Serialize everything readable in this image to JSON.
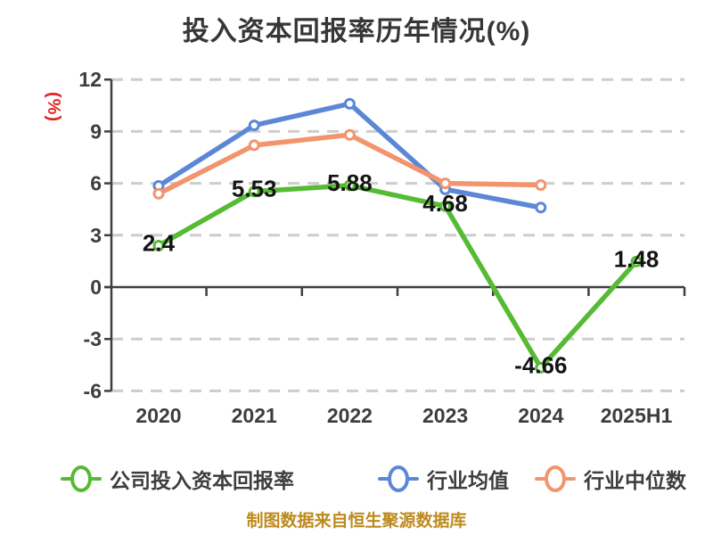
{
  "title": "投入资本回报率历年情况(%)",
  "y_axis_unit": "(%)",
  "footer": {
    "text": "制图数据来自恒生聚源数据库",
    "color": "#bd8a1d"
  },
  "colors": {
    "company_series": "#56bb34",
    "industry_avg_series": "#5c87d7",
    "industry_median_series": "#f2946c",
    "grid": "#cdcdcd",
    "axis": "#3f3f3f",
    "tick_label": "#3d3d3d",
    "value_label": "#141414",
    "y_unit_label": "#e32222",
    "title": "#363636",
    "marker_fill": "#ffffff"
  },
  "chart_data": {
    "type": "line",
    "title": "投入资本回报率历年情况(%)",
    "xlabel": "",
    "ylabel": "(%)",
    "categories": [
      "2020",
      "2021",
      "2022",
      "2023",
      "2024",
      "2025H1"
    ],
    "yticks": [
      12,
      9,
      6,
      3,
      0,
      -3,
      -6
    ],
    "ylim": [
      -6,
      12
    ],
    "grid": "dashed-horizontal",
    "legend_position": "bottom",
    "series": [
      {
        "name": "公司投入资本回报率",
        "color": "#56bb34",
        "values": [
          2.4,
          5.53,
          5.88,
          4.68,
          -4.66,
          1.48
        ],
        "labels": [
          "2.4",
          "5.53",
          "5.88",
          "4.68",
          "-4.66",
          "1.48"
        ]
      },
      {
        "name": "行业均值",
        "color": "#5c87d7",
        "values": [
          5.85,
          9.35,
          10.6,
          5.65,
          4.6,
          null
        ],
        "labels": []
      },
      {
        "name": "行业中位数",
        "color": "#f2946c",
        "values": [
          5.4,
          8.2,
          8.8,
          6.0,
          5.9,
          null
        ],
        "labels": []
      }
    ]
  }
}
